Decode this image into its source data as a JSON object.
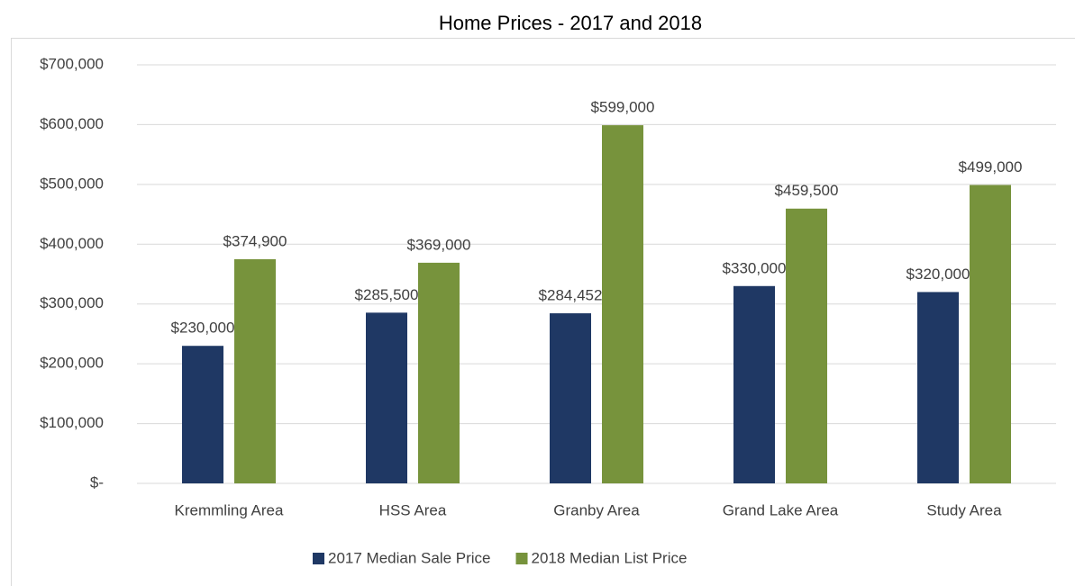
{
  "chart_data": {
    "type": "bar",
    "title": "Home Prices - 2017 and 2018",
    "categories": [
      "Kremmling Area",
      "HSS Area",
      "Granby Area",
      "Grand Lake Area",
      "Study Area"
    ],
    "series": [
      {
        "name": "2017 Median Sale Price",
        "color": "#1f3864",
        "values": [
          230000,
          285500,
          284452,
          330000,
          320000
        ],
        "value_labels": [
          "$230,000",
          "$285,500",
          "$284,452",
          "$330,000",
          "$320,000"
        ]
      },
      {
        "name": "2018 Median List Price",
        "color": "#77933c",
        "values": [
          374900,
          369000,
          599000,
          459500,
          499000
        ],
        "value_labels": [
          "$374,900",
          "$369,000",
          "$599,000",
          "$459,500",
          "$499,000"
        ]
      }
    ],
    "ylim": [
      0,
      700000
    ],
    "yticks": [
      {
        "value": 0,
        "label": "$-"
      },
      {
        "value": 100000,
        "label": "$100,000"
      },
      {
        "value": 200000,
        "label": "$200,000"
      },
      {
        "value": 300000,
        "label": "$300,000"
      },
      {
        "value": 400000,
        "label": "$400,000"
      },
      {
        "value": 500000,
        "label": "$500,000"
      },
      {
        "value": 600000,
        "label": "$600,000"
      },
      {
        "value": 700000,
        "label": "$700,000"
      }
    ],
    "grid": true,
    "legend": "bottom"
  }
}
